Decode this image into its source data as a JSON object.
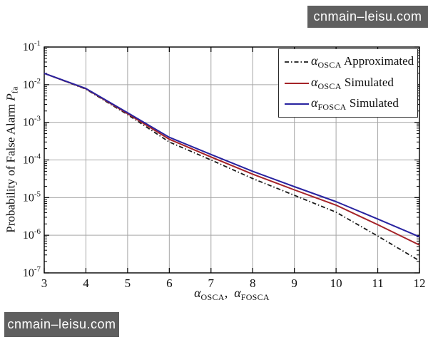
{
  "watermarks": {
    "top_right": "cnmain–leisu.com",
    "bottom_left": "cnmain–leisu.com"
  },
  "colors": {
    "background": "#ffffff",
    "axis": "#000000",
    "grid": "#a6a6a6",
    "watermark_bg": "#5f5f5f",
    "watermark_text": "#ffffff",
    "black_line": "#1a1a1a",
    "red_line": "#a52328",
    "blue_line": "#2823a0"
  },
  "chart_data": {
    "type": "line",
    "title": "",
    "xlabel": {
      "alpha1": "α",
      "sub1": "OSCA",
      "separator": ", ",
      "alpha2": "α",
      "sub2": "FOSCA"
    },
    "ylabel": {
      "text": "Probability of False Alarm ",
      "symbol": "P",
      "sub": "fa"
    },
    "x_axis": {
      "min": 3,
      "max": 12,
      "ticks": [
        3,
        4,
        5,
        6,
        7,
        8,
        9,
        10,
        11,
        12
      ]
    },
    "y_axis": {
      "scale": "log",
      "base_label": "10",
      "tick_exponents": [
        -1,
        -2,
        -3,
        -4,
        -5,
        -6,
        -7
      ],
      "max_exponent": -1,
      "min_exponent": -7
    },
    "grid": true,
    "legend_position": "top-right",
    "x": [
      3,
      4,
      5,
      6,
      7,
      8,
      9,
      10,
      11,
      12
    ],
    "series": [
      {
        "name": "alpha-osca-approximated",
        "legend": {
          "alpha": "α",
          "sub": "OSCA",
          "rest": " Approximated"
        },
        "color": "#1a1a1a",
        "style": "dash-dot",
        "values": [
          0.02,
          0.0076,
          0.0016,
          0.0003,
          0.0001,
          3.2e-05,
          1.15e-05,
          4.1e-06,
          9.5e-07,
          2.1e-07
        ]
      },
      {
        "name": "alpha-osca-simulated",
        "legend": {
          "alpha": "α",
          "sub": "OSCA",
          "rest": " Simulated"
        },
        "color": "#a52328",
        "style": "solid",
        "values": [
          0.02,
          0.0078,
          0.0017,
          0.000355,
          0.00012,
          4.2e-05,
          1.6e-05,
          6.3e-06,
          1.9e-06,
          5.5e-07
        ]
      },
      {
        "name": "alpha-fosca-simulated",
        "legend": {
          "alpha": "α",
          "sub": "FOSCA",
          "rest": " Simulated"
        },
        "color": "#2823a0",
        "style": "solid",
        "values": [
          0.02,
          0.0079,
          0.0018,
          0.0004,
          0.00014,
          5e-05,
          1.95e-05,
          7.8e-06,
          2.7e-06,
          9.1e-07
        ]
      }
    ]
  }
}
